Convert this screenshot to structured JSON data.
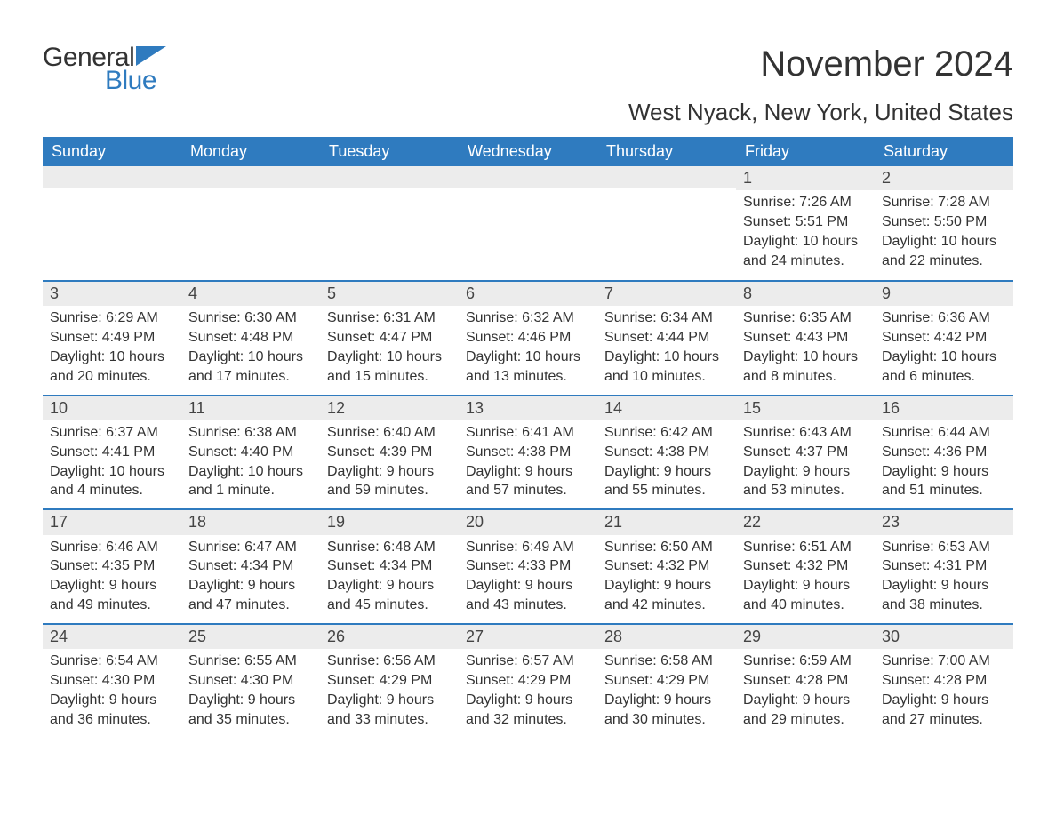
{
  "logo": {
    "text1": "General",
    "text2": "Blue",
    "accent_color": "#2f7bbf"
  },
  "title": "November 2024",
  "location": "West Nyack, New York, United States",
  "colors": {
    "header_bg": "#2f7bbf",
    "header_text": "#ffffff",
    "daynum_bg": "#ececec",
    "text": "#333333",
    "cell_border": "#2f7bbf",
    "background": "#ffffff"
  },
  "font": {
    "family": "Arial",
    "title_size": 40,
    "location_size": 26,
    "header_size": 18,
    "body_size": 16
  },
  "daysOfWeek": [
    "Sunday",
    "Monday",
    "Tuesday",
    "Wednesday",
    "Thursday",
    "Friday",
    "Saturday"
  ],
  "weeks": [
    [
      {
        "empty": true
      },
      {
        "empty": true
      },
      {
        "empty": true
      },
      {
        "empty": true
      },
      {
        "empty": true
      },
      {
        "n": "1",
        "sunrise": "Sunrise: 7:26 AM",
        "sunset": "Sunset: 5:51 PM",
        "d1": "Daylight: 10 hours",
        "d2": "and 24 minutes."
      },
      {
        "n": "2",
        "sunrise": "Sunrise: 7:28 AM",
        "sunset": "Sunset: 5:50 PM",
        "d1": "Daylight: 10 hours",
        "d2": "and 22 minutes."
      }
    ],
    [
      {
        "n": "3",
        "sunrise": "Sunrise: 6:29 AM",
        "sunset": "Sunset: 4:49 PM",
        "d1": "Daylight: 10 hours",
        "d2": "and 20 minutes."
      },
      {
        "n": "4",
        "sunrise": "Sunrise: 6:30 AM",
        "sunset": "Sunset: 4:48 PM",
        "d1": "Daylight: 10 hours",
        "d2": "and 17 minutes."
      },
      {
        "n": "5",
        "sunrise": "Sunrise: 6:31 AM",
        "sunset": "Sunset: 4:47 PM",
        "d1": "Daylight: 10 hours",
        "d2": "and 15 minutes."
      },
      {
        "n": "6",
        "sunrise": "Sunrise: 6:32 AM",
        "sunset": "Sunset: 4:46 PM",
        "d1": "Daylight: 10 hours",
        "d2": "and 13 minutes."
      },
      {
        "n": "7",
        "sunrise": "Sunrise: 6:34 AM",
        "sunset": "Sunset: 4:44 PM",
        "d1": "Daylight: 10 hours",
        "d2": "and 10 minutes."
      },
      {
        "n": "8",
        "sunrise": "Sunrise: 6:35 AM",
        "sunset": "Sunset: 4:43 PM",
        "d1": "Daylight: 10 hours",
        "d2": "and 8 minutes."
      },
      {
        "n": "9",
        "sunrise": "Sunrise: 6:36 AM",
        "sunset": "Sunset: 4:42 PM",
        "d1": "Daylight: 10 hours",
        "d2": "and 6 minutes."
      }
    ],
    [
      {
        "n": "10",
        "sunrise": "Sunrise: 6:37 AM",
        "sunset": "Sunset: 4:41 PM",
        "d1": "Daylight: 10 hours",
        "d2": "and 4 minutes."
      },
      {
        "n": "11",
        "sunrise": "Sunrise: 6:38 AM",
        "sunset": "Sunset: 4:40 PM",
        "d1": "Daylight: 10 hours",
        "d2": "and 1 minute."
      },
      {
        "n": "12",
        "sunrise": "Sunrise: 6:40 AM",
        "sunset": "Sunset: 4:39 PM",
        "d1": "Daylight: 9 hours",
        "d2": "and 59 minutes."
      },
      {
        "n": "13",
        "sunrise": "Sunrise: 6:41 AM",
        "sunset": "Sunset: 4:38 PM",
        "d1": "Daylight: 9 hours",
        "d2": "and 57 minutes."
      },
      {
        "n": "14",
        "sunrise": "Sunrise: 6:42 AM",
        "sunset": "Sunset: 4:38 PM",
        "d1": "Daylight: 9 hours",
        "d2": "and 55 minutes."
      },
      {
        "n": "15",
        "sunrise": "Sunrise: 6:43 AM",
        "sunset": "Sunset: 4:37 PM",
        "d1": "Daylight: 9 hours",
        "d2": "and 53 minutes."
      },
      {
        "n": "16",
        "sunrise": "Sunrise: 6:44 AM",
        "sunset": "Sunset: 4:36 PM",
        "d1": "Daylight: 9 hours",
        "d2": "and 51 minutes."
      }
    ],
    [
      {
        "n": "17",
        "sunrise": "Sunrise: 6:46 AM",
        "sunset": "Sunset: 4:35 PM",
        "d1": "Daylight: 9 hours",
        "d2": "and 49 minutes."
      },
      {
        "n": "18",
        "sunrise": "Sunrise: 6:47 AM",
        "sunset": "Sunset: 4:34 PM",
        "d1": "Daylight: 9 hours",
        "d2": "and 47 minutes."
      },
      {
        "n": "19",
        "sunrise": "Sunrise: 6:48 AM",
        "sunset": "Sunset: 4:34 PM",
        "d1": "Daylight: 9 hours",
        "d2": "and 45 minutes."
      },
      {
        "n": "20",
        "sunrise": "Sunrise: 6:49 AM",
        "sunset": "Sunset: 4:33 PM",
        "d1": "Daylight: 9 hours",
        "d2": "and 43 minutes."
      },
      {
        "n": "21",
        "sunrise": "Sunrise: 6:50 AM",
        "sunset": "Sunset: 4:32 PM",
        "d1": "Daylight: 9 hours",
        "d2": "and 42 minutes."
      },
      {
        "n": "22",
        "sunrise": "Sunrise: 6:51 AM",
        "sunset": "Sunset: 4:32 PM",
        "d1": "Daylight: 9 hours",
        "d2": "and 40 minutes."
      },
      {
        "n": "23",
        "sunrise": "Sunrise: 6:53 AM",
        "sunset": "Sunset: 4:31 PM",
        "d1": "Daylight: 9 hours",
        "d2": "and 38 minutes."
      }
    ],
    [
      {
        "n": "24",
        "sunrise": "Sunrise: 6:54 AM",
        "sunset": "Sunset: 4:30 PM",
        "d1": "Daylight: 9 hours",
        "d2": "and 36 minutes."
      },
      {
        "n": "25",
        "sunrise": "Sunrise: 6:55 AM",
        "sunset": "Sunset: 4:30 PM",
        "d1": "Daylight: 9 hours",
        "d2": "and 35 minutes."
      },
      {
        "n": "26",
        "sunrise": "Sunrise: 6:56 AM",
        "sunset": "Sunset: 4:29 PM",
        "d1": "Daylight: 9 hours",
        "d2": "and 33 minutes."
      },
      {
        "n": "27",
        "sunrise": "Sunrise: 6:57 AM",
        "sunset": "Sunset: 4:29 PM",
        "d1": "Daylight: 9 hours",
        "d2": "and 32 minutes."
      },
      {
        "n": "28",
        "sunrise": "Sunrise: 6:58 AM",
        "sunset": "Sunset: 4:29 PM",
        "d1": "Daylight: 9 hours",
        "d2": "and 30 minutes."
      },
      {
        "n": "29",
        "sunrise": "Sunrise: 6:59 AM",
        "sunset": "Sunset: 4:28 PM",
        "d1": "Daylight: 9 hours",
        "d2": "and 29 minutes."
      },
      {
        "n": "30",
        "sunrise": "Sunrise: 7:00 AM",
        "sunset": "Sunset: 4:28 PM",
        "d1": "Daylight: 9 hours",
        "d2": "and 27 minutes."
      }
    ]
  ]
}
